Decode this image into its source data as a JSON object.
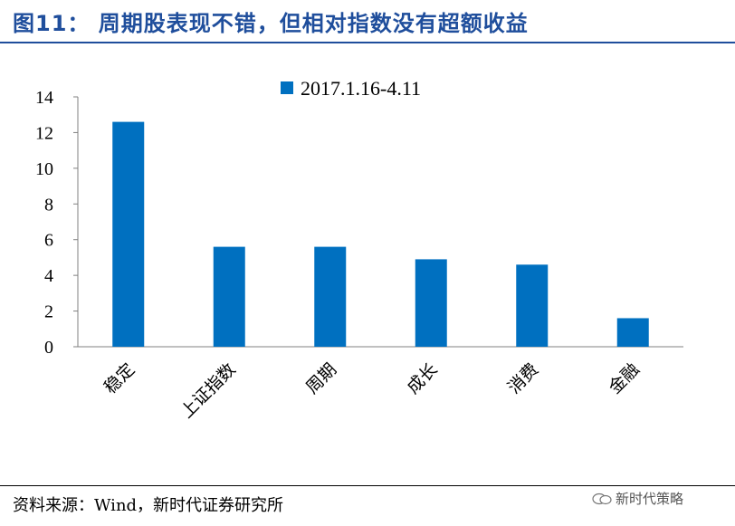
{
  "header": {
    "title": "图11：  周期股表现不错，但相对指数没有超额收益"
  },
  "footer": {
    "source": "资料来源：Wind，新时代证券研究所",
    "watermark": "新时代策略"
  },
  "colors": {
    "bar": "#0070c0",
    "title": "#1f4e9c",
    "axis": "#808080"
  },
  "chart_data": {
    "type": "bar",
    "categories": [
      "稳定",
      "上证指数",
      "周期",
      "成长",
      "消费",
      "金融"
    ],
    "series": [
      {
        "name": "2017.1.16-4.11",
        "values": [
          12.6,
          5.6,
          5.6,
          4.9,
          4.6,
          1.6
        ]
      }
    ],
    "ylim": [
      0,
      14
    ],
    "yticks": [
      0,
      2,
      4,
      6,
      8,
      10,
      12,
      14
    ],
    "legend_position": "top-center",
    "grid": false
  }
}
